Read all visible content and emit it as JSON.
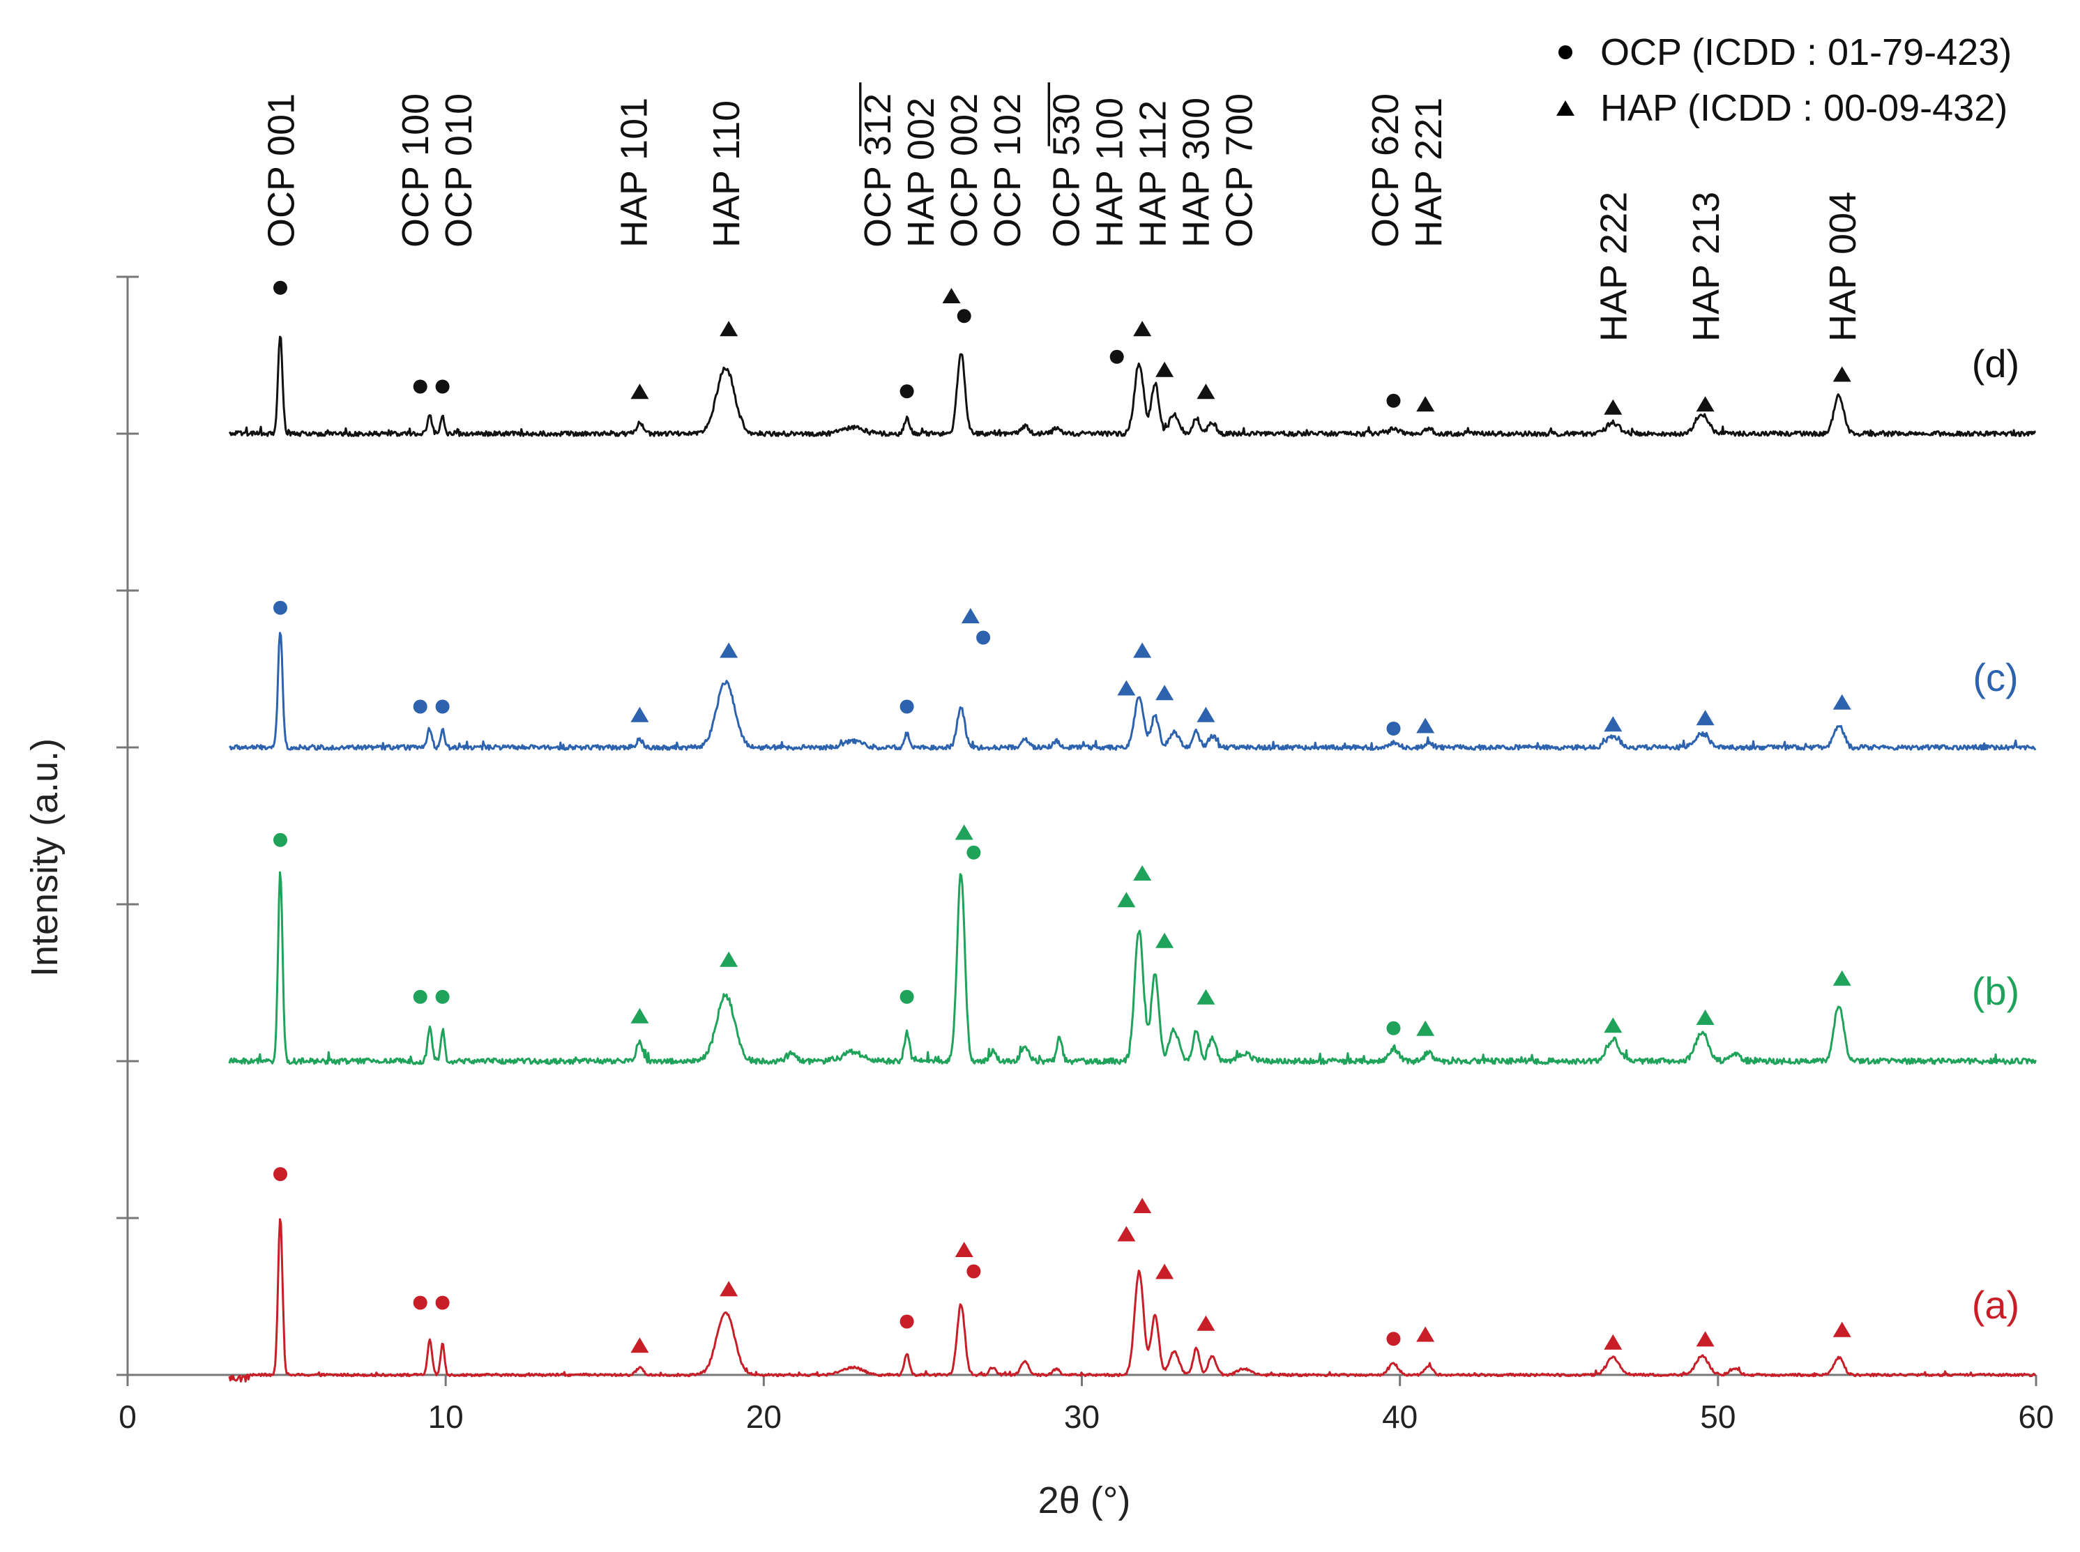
{
  "chart_data": {
    "type": "line",
    "title": "",
    "xlabel": "2θ (°)",
    "ylabel": "Intensity (a.u.)",
    "xlim": [
      0,
      60
    ],
    "x_ticks": [
      0,
      10,
      20,
      30,
      40,
      50,
      60
    ],
    "y_tick_count": 8,
    "x_start": 3.2,
    "legend": {
      "placement": "top-right",
      "entries": [
        {
          "symbol": "circle",
          "label": "OCP (ICDD : 01-79-423)"
        },
        {
          "symbol": "triangle",
          "label": "HAP (ICDD : 00-09-432)"
        }
      ]
    },
    "reflection_labels": [
      {
        "x": 4.8,
        "lines": [
          "OCP 001"
        ]
      },
      {
        "x": 9.7,
        "lines": [
          "OCP 100",
          "OCP 010"
        ]
      },
      {
        "x": 15.9,
        "lines": [
          "HAP 101"
        ]
      },
      {
        "x": 18.8,
        "lines": [
          "HAP 110"
        ]
      },
      {
        "x": 25.6,
        "lines": [
          "OCP 3̅1̅2̅",
          "HAP 002",
          "OCP 002",
          "OCP 102"
        ]
      },
      {
        "x": 32.2,
        "lines": [
          "OCP 5̅3̅0̅",
          "HAP 100",
          "HAP 112",
          "HAP 300",
          "OCP 700"
        ]
      },
      {
        "x": 40.2,
        "lines": [
          "OCP 620",
          "HAP 221"
        ]
      },
      {
        "x": 46.7,
        "lines": [
          "HAP 222"
        ]
      },
      {
        "x": 49.6,
        "lines": [
          "HAP 213"
        ]
      },
      {
        "x": 53.9,
        "lines": [
          "HAP 004"
        ]
      }
    ],
    "series": [
      {
        "name": "(a)",
        "color": "#c81e28",
        "offset": 0.0,
        "noise": 0.008,
        "baseline_start": 3.8,
        "peaks": [
          [
            4.8,
            1.0,
            0.07
          ],
          [
            9.5,
            0.22,
            0.07
          ],
          [
            9.9,
            0.2,
            0.06
          ],
          [
            16.1,
            0.05,
            0.1
          ],
          [
            18.8,
            0.4,
            0.28
          ],
          [
            22.8,
            0.05,
            0.3
          ],
          [
            24.5,
            0.13,
            0.08
          ],
          [
            26.2,
            0.45,
            0.12
          ],
          [
            27.2,
            0.05,
            0.1
          ],
          [
            28.2,
            0.09,
            0.12
          ],
          [
            29.2,
            0.04,
            0.1
          ],
          [
            31.8,
            0.66,
            0.14
          ],
          [
            32.3,
            0.38,
            0.12
          ],
          [
            32.9,
            0.15,
            0.15
          ],
          [
            33.6,
            0.17,
            0.1
          ],
          [
            34.1,
            0.12,
            0.12
          ],
          [
            35.1,
            0.04,
            0.2
          ],
          [
            39.8,
            0.07,
            0.15
          ],
          [
            40.9,
            0.06,
            0.12
          ],
          [
            46.7,
            0.11,
            0.2
          ],
          [
            49.5,
            0.12,
            0.2
          ],
          [
            50.5,
            0.04,
            0.15
          ],
          [
            53.8,
            0.11,
            0.15
          ]
        ]
      },
      {
        "name": "(b)",
        "color": "#1fa35a",
        "offset": 2.0,
        "noise": 0.018,
        "baseline_start": 3.2,
        "peaks": [
          [
            4.8,
            1.2,
            0.07
          ],
          [
            9.5,
            0.22,
            0.07
          ],
          [
            9.9,
            0.2,
            0.06
          ],
          [
            16.1,
            0.12,
            0.1
          ],
          [
            18.8,
            0.42,
            0.28
          ],
          [
            20.9,
            0.06,
            0.1
          ],
          [
            22.8,
            0.06,
            0.3
          ],
          [
            24.5,
            0.18,
            0.08
          ],
          [
            26.2,
            1.2,
            0.12
          ],
          [
            27.2,
            0.06,
            0.1
          ],
          [
            28.2,
            0.1,
            0.12
          ],
          [
            29.3,
            0.15,
            0.08
          ],
          [
            31.8,
            0.83,
            0.14
          ],
          [
            32.3,
            0.55,
            0.12
          ],
          [
            32.9,
            0.2,
            0.15
          ],
          [
            33.6,
            0.2,
            0.1
          ],
          [
            34.1,
            0.15,
            0.12
          ],
          [
            35.1,
            0.05,
            0.2
          ],
          [
            39.8,
            0.08,
            0.15
          ],
          [
            40.9,
            0.06,
            0.12
          ],
          [
            46.7,
            0.14,
            0.2
          ],
          [
            49.5,
            0.18,
            0.2
          ],
          [
            50.5,
            0.05,
            0.15
          ],
          [
            53.8,
            0.36,
            0.15
          ]
        ]
      },
      {
        "name": "(c)",
        "color": "#2c62ae",
        "offset": 4.0,
        "noise": 0.015,
        "baseline_start": 3.2,
        "peaks": [
          [
            4.8,
            0.75,
            0.07
          ],
          [
            9.5,
            0.12,
            0.07
          ],
          [
            9.9,
            0.12,
            0.06
          ],
          [
            16.1,
            0.05,
            0.1
          ],
          [
            18.8,
            0.42,
            0.28
          ],
          [
            22.8,
            0.04,
            0.3
          ],
          [
            24.5,
            0.09,
            0.08
          ],
          [
            26.2,
            0.25,
            0.12
          ],
          [
            28.2,
            0.05,
            0.12
          ],
          [
            29.2,
            0.04,
            0.1
          ],
          [
            31.8,
            0.33,
            0.14
          ],
          [
            32.3,
            0.2,
            0.12
          ],
          [
            32.9,
            0.1,
            0.15
          ],
          [
            33.6,
            0.1,
            0.1
          ],
          [
            34.1,
            0.07,
            0.12
          ],
          [
            39.8,
            0.03,
            0.15
          ],
          [
            40.9,
            0.03,
            0.12
          ],
          [
            46.7,
            0.07,
            0.2
          ],
          [
            49.5,
            0.09,
            0.2
          ],
          [
            53.8,
            0.14,
            0.15
          ]
        ]
      },
      {
        "name": "(d)",
        "color": "#111111",
        "offset": 6.0,
        "noise": 0.015,
        "baseline_start": 3.2,
        "peaks": [
          [
            4.8,
            0.63,
            0.07
          ],
          [
            9.5,
            0.11,
            0.07
          ],
          [
            9.9,
            0.11,
            0.06
          ],
          [
            16.1,
            0.07,
            0.1
          ],
          [
            18.8,
            0.42,
            0.28
          ],
          [
            22.8,
            0.04,
            0.3
          ],
          [
            24.5,
            0.1,
            0.08
          ],
          [
            26.2,
            0.52,
            0.12
          ],
          [
            28.2,
            0.05,
            0.12
          ],
          [
            29.2,
            0.04,
            0.1
          ],
          [
            31.8,
            0.45,
            0.14
          ],
          [
            32.3,
            0.32,
            0.12
          ],
          [
            32.9,
            0.12,
            0.15
          ],
          [
            33.6,
            0.1,
            0.1
          ],
          [
            34.1,
            0.07,
            0.12
          ],
          [
            39.8,
            0.03,
            0.15
          ],
          [
            40.9,
            0.03,
            0.12
          ],
          [
            46.7,
            0.07,
            0.2
          ],
          [
            49.5,
            0.12,
            0.2
          ],
          [
            53.8,
            0.24,
            0.15
          ]
        ]
      }
    ],
    "markers": [
      {
        "series": "(a)",
        "symbol": "circle",
        "x": 4.8,
        "y": 1.28
      },
      {
        "series": "(a)",
        "symbol": "circle",
        "x": 9.2,
        "y": 0.46
      },
      {
        "series": "(a)",
        "symbol": "circle",
        "x": 9.9,
        "y": 0.46
      },
      {
        "series": "(a)",
        "symbol": "triangle",
        "x": 16.1,
        "y": 0.19
      },
      {
        "series": "(a)",
        "symbol": "triangle",
        "x": 18.9,
        "y": 0.55
      },
      {
        "series": "(a)",
        "symbol": "circle",
        "x": 24.5,
        "y": 0.34
      },
      {
        "series": "(a)",
        "symbol": "triangle",
        "x": 26.3,
        "y": 0.8
      },
      {
        "series": "(a)",
        "symbol": "circle",
        "x": 26.6,
        "y": 0.66
      },
      {
        "series": "(a)",
        "symbol": "triangle",
        "x": 31.4,
        "y": 0.9
      },
      {
        "series": "(a)",
        "symbol": "triangle",
        "x": 31.9,
        "y": 1.08
      },
      {
        "series": "(a)",
        "symbol": "triangle",
        "x": 32.6,
        "y": 0.66
      },
      {
        "series": "(a)",
        "symbol": "triangle",
        "x": 33.9,
        "y": 0.33
      },
      {
        "series": "(a)",
        "symbol": "circle",
        "x": 39.8,
        "y": 0.23
      },
      {
        "series": "(a)",
        "symbol": "triangle",
        "x": 40.8,
        "y": 0.26
      },
      {
        "series": "(a)",
        "symbol": "triangle",
        "x": 46.7,
        "y": 0.21
      },
      {
        "series": "(a)",
        "symbol": "triangle",
        "x": 49.6,
        "y": 0.23
      },
      {
        "series": "(a)",
        "symbol": "triangle",
        "x": 53.9,
        "y": 0.29
      },
      {
        "series": "(b)",
        "symbol": "circle",
        "x": 4.8,
        "y": 3.41
      },
      {
        "series": "(b)",
        "symbol": "circle",
        "x": 9.2,
        "y": 2.41
      },
      {
        "series": "(b)",
        "symbol": "circle",
        "x": 9.9,
        "y": 2.41
      },
      {
        "series": "(b)",
        "symbol": "triangle",
        "x": 16.1,
        "y": 2.29
      },
      {
        "series": "(b)",
        "symbol": "triangle",
        "x": 18.9,
        "y": 2.65
      },
      {
        "series": "(b)",
        "symbol": "circle",
        "x": 24.5,
        "y": 2.41
      },
      {
        "series": "(b)",
        "symbol": "triangle",
        "x": 26.3,
        "y": 3.46
      },
      {
        "series": "(b)",
        "symbol": "circle",
        "x": 26.6,
        "y": 3.33
      },
      {
        "series": "(b)",
        "symbol": "triangle",
        "x": 31.4,
        "y": 3.03
      },
      {
        "series": "(b)",
        "symbol": "triangle",
        "x": 31.9,
        "y": 3.2
      },
      {
        "series": "(b)",
        "symbol": "triangle",
        "x": 32.6,
        "y": 2.77
      },
      {
        "series": "(b)",
        "symbol": "triangle",
        "x": 33.9,
        "y": 2.41
      },
      {
        "series": "(b)",
        "symbol": "circle",
        "x": 39.8,
        "y": 2.21
      },
      {
        "series": "(b)",
        "symbol": "triangle",
        "x": 40.8,
        "y": 2.21
      },
      {
        "series": "(b)",
        "symbol": "triangle",
        "x": 46.7,
        "y": 2.23
      },
      {
        "series": "(b)",
        "symbol": "triangle",
        "x": 49.6,
        "y": 2.28
      },
      {
        "series": "(b)",
        "symbol": "triangle",
        "x": 53.9,
        "y": 2.53
      },
      {
        "series": "(c)",
        "symbol": "circle",
        "x": 4.8,
        "y": 4.89
      },
      {
        "series": "(c)",
        "symbol": "circle",
        "x": 9.2,
        "y": 4.26
      },
      {
        "series": "(c)",
        "symbol": "circle",
        "x": 9.9,
        "y": 4.26
      },
      {
        "series": "(c)",
        "symbol": "triangle",
        "x": 16.1,
        "y": 4.21
      },
      {
        "series": "(c)",
        "symbol": "triangle",
        "x": 18.9,
        "y": 4.62
      },
      {
        "series": "(c)",
        "symbol": "circle",
        "x": 24.5,
        "y": 4.26
      },
      {
        "series": "(c)",
        "symbol": "triangle",
        "x": 26.5,
        "y": 4.84
      },
      {
        "series": "(c)",
        "symbol": "circle",
        "x": 26.9,
        "y": 4.7
      },
      {
        "series": "(c)",
        "symbol": "triangle",
        "x": 31.4,
        "y": 4.38
      },
      {
        "series": "(c)",
        "symbol": "triangle",
        "x": 31.9,
        "y": 4.62
      },
      {
        "series": "(c)",
        "symbol": "triangle",
        "x": 32.6,
        "y": 4.35
      },
      {
        "series": "(c)",
        "symbol": "triangle",
        "x": 33.9,
        "y": 4.21
      },
      {
        "series": "(c)",
        "symbol": "circle",
        "x": 39.8,
        "y": 4.12
      },
      {
        "series": "(c)",
        "symbol": "triangle",
        "x": 40.8,
        "y": 4.14
      },
      {
        "series": "(c)",
        "symbol": "triangle",
        "x": 46.7,
        "y": 4.15
      },
      {
        "series": "(c)",
        "symbol": "triangle",
        "x": 49.6,
        "y": 4.19
      },
      {
        "series": "(c)",
        "symbol": "triangle",
        "x": 53.9,
        "y": 4.29
      },
      {
        "series": "(d)",
        "symbol": "circle",
        "x": 4.8,
        "y": 6.93
      },
      {
        "series": "(d)",
        "symbol": "circle",
        "x": 9.2,
        "y": 6.3
      },
      {
        "series": "(d)",
        "symbol": "circle",
        "x": 9.9,
        "y": 6.3
      },
      {
        "series": "(d)",
        "symbol": "triangle",
        "x": 16.1,
        "y": 6.27
      },
      {
        "series": "(d)",
        "symbol": "triangle",
        "x": 18.9,
        "y": 6.67
      },
      {
        "series": "(d)",
        "symbol": "circle",
        "x": 24.5,
        "y": 6.27
      },
      {
        "series": "(d)",
        "symbol": "triangle",
        "x": 25.9,
        "y": 6.88
      },
      {
        "series": "(d)",
        "symbol": "circle",
        "x": 26.3,
        "y": 6.75
      },
      {
        "series": "(d)",
        "symbol": "circle",
        "x": 31.1,
        "y": 6.49
      },
      {
        "series": "(d)",
        "symbol": "triangle",
        "x": 31.9,
        "y": 6.67
      },
      {
        "series": "(d)",
        "symbol": "triangle",
        "x": 32.6,
        "y": 6.41
      },
      {
        "series": "(d)",
        "symbol": "triangle",
        "x": 33.9,
        "y": 6.27
      },
      {
        "series": "(d)",
        "symbol": "circle",
        "x": 39.8,
        "y": 6.21
      },
      {
        "series": "(d)",
        "symbol": "triangle",
        "x": 40.8,
        "y": 6.19
      },
      {
        "series": "(d)",
        "symbol": "triangle",
        "x": 46.7,
        "y": 6.17
      },
      {
        "series": "(d)",
        "symbol": "triangle",
        "x": 49.6,
        "y": 6.19
      },
      {
        "series": "(d)",
        "symbol": "triangle",
        "x": 53.9,
        "y": 6.38
      }
    ]
  }
}
